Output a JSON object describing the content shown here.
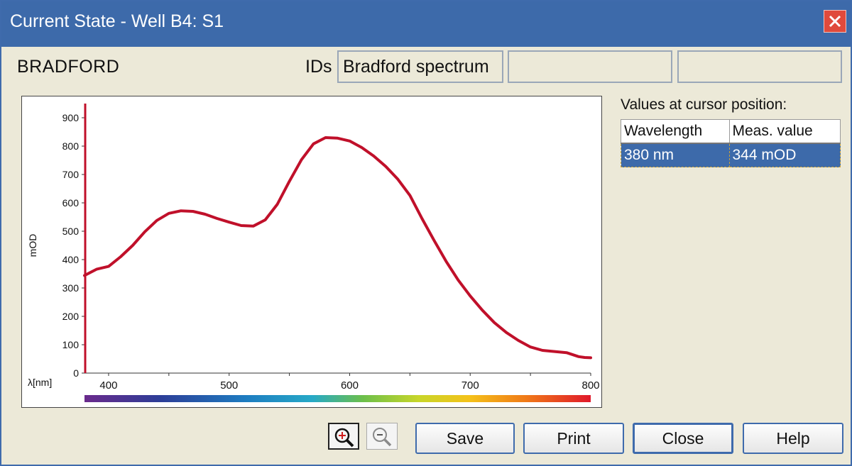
{
  "window": {
    "title": "Current State - Well B4: S1"
  },
  "header": {
    "sample_name": "BRADFORD",
    "ids_label": "IDs",
    "ids": [
      "Bradford spectrum",
      "",
      ""
    ]
  },
  "cursor_panel": {
    "title": "Values at cursor position:",
    "columns": [
      "Wavelength",
      "Meas. value"
    ],
    "row": [
      "380 nm",
      "344 mOD"
    ]
  },
  "buttons": {
    "save": "Save",
    "print": "Print",
    "close": "Close",
    "help": "Help"
  },
  "icons": {
    "close": "close-icon",
    "zoom_in": "zoom-in-icon",
    "zoom_out": "zoom-out-icon"
  },
  "colors": {
    "accent": "#3d6aaa",
    "curve": "#c0102a",
    "cursor_line": "#c0102a"
  },
  "chart_data": {
    "type": "line",
    "ylabel": "mOD",
    "xlabel": "λ[nm]",
    "xlim": [
      380,
      800
    ],
    "ylim": [
      0,
      900
    ],
    "xticks": [
      400,
      500,
      600,
      700,
      800
    ],
    "yticks": [
      0,
      100,
      200,
      300,
      400,
      500,
      600,
      700,
      800,
      900
    ],
    "cursor_x": 380,
    "series": [
      {
        "x": [
          380,
          390,
          400,
          410,
          420,
          430,
          440,
          450,
          460,
          470,
          480,
          490,
          500,
          510,
          520,
          530,
          540,
          550,
          560,
          570,
          580,
          590,
          600,
          610,
          620,
          630,
          640,
          650,
          660,
          670,
          680,
          690,
          700,
          710,
          720,
          730,
          740,
          750,
          760,
          770,
          780,
          790,
          795,
          800
        ],
        "y": [
          344,
          366,
          376,
          410,
          450,
          498,
          538,
          563,
          572,
          570,
          560,
          545,
          532,
          520,
          518,
          540,
          595,
          676,
          752,
          808,
          830,
          828,
          818,
          795,
          765,
          728,
          683,
          626,
          545,
          468,
          394,
          328,
          272,
          222,
          178,
          143,
          115,
          92,
          80,
          76,
          72,
          58,
          55,
          54
        ]
      }
    ]
  }
}
